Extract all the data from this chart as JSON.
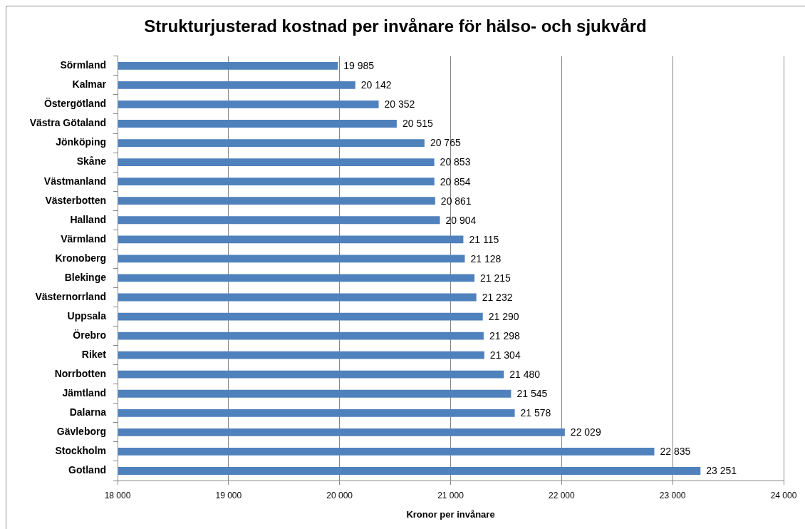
{
  "chart_data": {
    "type": "bar",
    "orientation": "horizontal",
    "title": "Strukturjusterad kostnad per invånare för hälso- och sjukvård",
    "xlabel": "Kronor per invånare",
    "categories": [
      "Sörmland",
      "Kalmar",
      "Östergötland",
      "Västra Götaland",
      "Jönköping",
      "Skåne",
      "Västmanland",
      "Västerbotten",
      "Halland",
      "Värmland",
      "Kronoberg",
      "Blekinge",
      "Västernorrland",
      "Uppsala",
      "Örebro",
      "Riket",
      "Norrbotten",
      "Jämtland",
      "Dalarna",
      "Gävleborg",
      "Stockholm",
      "Gotland"
    ],
    "values": [
      19985,
      20142,
      20352,
      20515,
      20765,
      20853,
      20854,
      20861,
      20904,
      21115,
      21128,
      21215,
      21232,
      21290,
      21298,
      21304,
      21480,
      21545,
      21578,
      22029,
      22835,
      23251
    ],
    "value_labels": [
      "19 985",
      "20 142",
      "20 352",
      "20 515",
      "20 765",
      "20 853",
      "20 854",
      "20 861",
      "20 904",
      "21 115",
      "21 128",
      "21 215",
      "21 232",
      "21 290",
      "21 298",
      "21 304",
      "21 480",
      "21 545",
      "21 578",
      "22 029",
      "22 835",
      "23 251"
    ],
    "color": "#4f81bd",
    "xlim": [
      18000,
      24000
    ],
    "xticks": [
      {
        "value": 18000,
        "label": "18 000"
      },
      {
        "value": 19000,
        "label": "19 000"
      },
      {
        "value": 20000,
        "label": "20 000"
      },
      {
        "value": 21000,
        "label": "21 000"
      },
      {
        "value": 22000,
        "label": "22 000"
      },
      {
        "value": 23000,
        "label": "23 000"
      },
      {
        "value": 24000,
        "label": "24 000"
      }
    ],
    "grid": "x"
  }
}
